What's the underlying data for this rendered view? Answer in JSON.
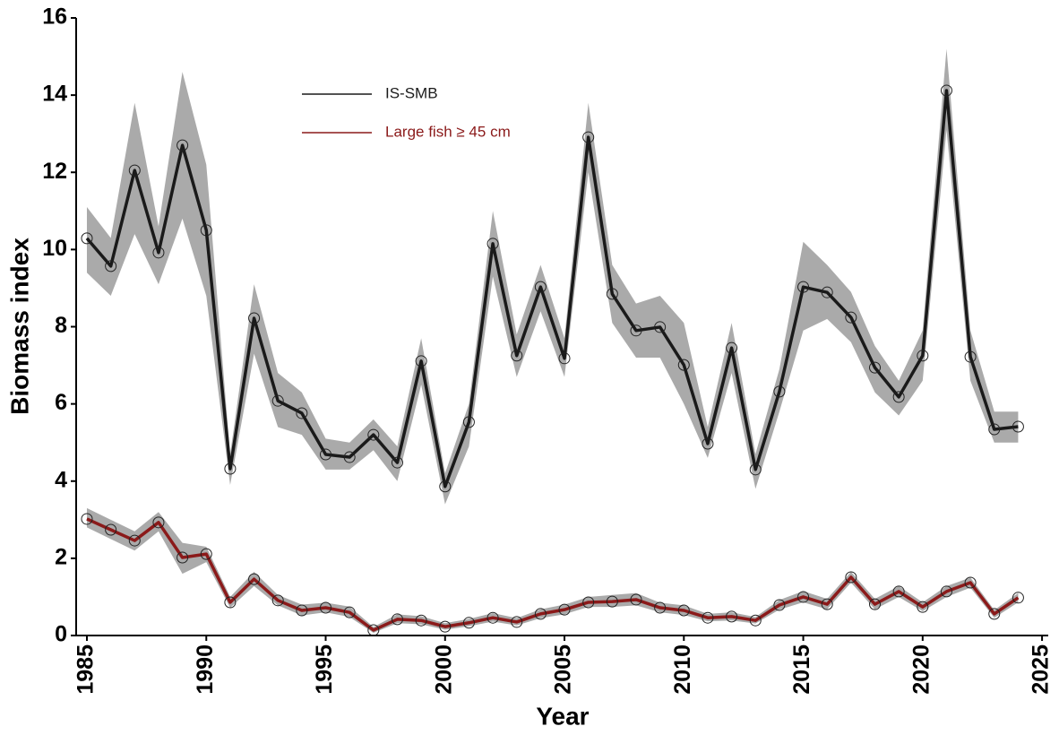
{
  "chart_data": {
    "type": "line",
    "x_label": "Year",
    "y_label": "Biomass index",
    "x": [
      1985,
      1986,
      1987,
      1988,
      1989,
      1990,
      1991,
      1992,
      1993,
      1994,
      1995,
      1996,
      1997,
      1998,
      1999,
      2000,
      2001,
      2002,
      2003,
      2004,
      2005,
      2006,
      2007,
      2008,
      2009,
      2010,
      2011,
      2012,
      2013,
      2014,
      2015,
      2016,
      2017,
      2018,
      2019,
      2020,
      2021,
      2022,
      2023,
      2024
    ],
    "series": [
      {
        "name": "IS-SMB",
        "color": "#1a1a1a",
        "values": [
          10.29,
          9.57,
          12.05,
          9.92,
          12.7,
          10.5,
          4.32,
          8.22,
          6.08,
          5.76,
          4.69,
          4.62,
          5.2,
          4.48,
          7.11,
          3.86,
          5.53,
          10.15,
          7.25,
          9.03,
          7.18,
          12.91,
          8.85,
          7.9,
          7.99,
          7.01,
          4.97,
          7.45,
          4.3,
          6.32,
          9.03,
          8.89,
          8.24,
          6.94,
          6.18,
          7.25,
          14.12,
          7.22,
          5.34,
          5.41
        ],
        "upper": [
          11.1,
          10.3,
          13.8,
          10.6,
          14.6,
          12.2,
          4.7,
          9.1,
          6.8,
          6.3,
          5.1,
          5.0,
          5.6,
          4.9,
          7.7,
          4.2,
          6.0,
          11.0,
          7.8,
          9.6,
          7.7,
          13.8,
          9.6,
          8.6,
          8.8,
          8.1,
          5.4,
          8.1,
          4.7,
          6.9,
          10.2,
          9.6,
          8.9,
          7.5,
          6.6,
          7.9,
          15.2,
          7.9,
          5.8,
          5.8
        ],
        "lower": [
          9.4,
          8.8,
          10.4,
          9.1,
          10.8,
          8.8,
          3.9,
          7.3,
          5.4,
          5.2,
          4.3,
          4.3,
          4.8,
          4.0,
          6.5,
          3.4,
          4.9,
          9.3,
          6.7,
          8.4,
          6.7,
          12.0,
          8.1,
          7.2,
          7.2,
          6.0,
          4.6,
          6.8,
          3.8,
          5.8,
          7.9,
          8.2,
          7.6,
          6.3,
          5.7,
          6.6,
          13.1,
          6.6,
          5.0,
          5.0
        ]
      },
      {
        "name": "Large fish ≥ 45 cm",
        "color": "#8b1a1a",
        "values": [
          3.02,
          2.74,
          2.46,
          2.93,
          2.02,
          2.11,
          0.86,
          1.46,
          0.91,
          0.65,
          0.72,
          0.6,
          0.14,
          0.42,
          0.39,
          0.23,
          0.33,
          0.46,
          0.35,
          0.56,
          0.67,
          0.86,
          0.88,
          0.93,
          0.72,
          0.65,
          0.46,
          0.49,
          0.39,
          0.79,
          1.0,
          0.81,
          1.51,
          0.81,
          1.14,
          0.74,
          1.14,
          1.37,
          0.56,
          0.98
        ],
        "upper": [
          3.3,
          3.0,
          2.7,
          3.2,
          2.4,
          2.3,
          1.0,
          1.65,
          1.05,
          0.8,
          0.85,
          0.75,
          0.22,
          0.55,
          0.5,
          0.32,
          0.43,
          0.58,
          0.45,
          0.68,
          0.8,
          1.0,
          1.05,
          1.1,
          0.85,
          0.78,
          0.56,
          0.6,
          0.48,
          0.92,
          1.15,
          0.95,
          1.65,
          0.95,
          1.28,
          0.86,
          1.28,
          1.5,
          0.66,
          1.1
        ],
        "lower": [
          2.8,
          2.5,
          2.2,
          2.7,
          1.6,
          1.9,
          0.72,
          1.28,
          0.78,
          0.52,
          0.6,
          0.48,
          0.07,
          0.32,
          0.29,
          0.15,
          0.24,
          0.36,
          0.26,
          0.45,
          0.55,
          0.74,
          0.74,
          0.78,
          0.6,
          0.53,
          0.37,
          0.39,
          0.31,
          0.67,
          0.86,
          0.68,
          1.37,
          0.68,
          1.0,
          0.63,
          1.0,
          1.24,
          0.46,
          0.86
        ]
      }
    ],
    "band_color": "#aaaaaa",
    "xlim": [
      1984.55,
      2025.26
    ],
    "xticks": [
      1985,
      1990,
      1995,
      2000,
      2005,
      2010,
      2015,
      2020,
      2025
    ],
    "ylim": [
      0,
      16
    ],
    "yticks": [
      0,
      2,
      4,
      6,
      8,
      10,
      12,
      14,
      16
    ],
    "grid": false,
    "legend_position": "upper left"
  }
}
